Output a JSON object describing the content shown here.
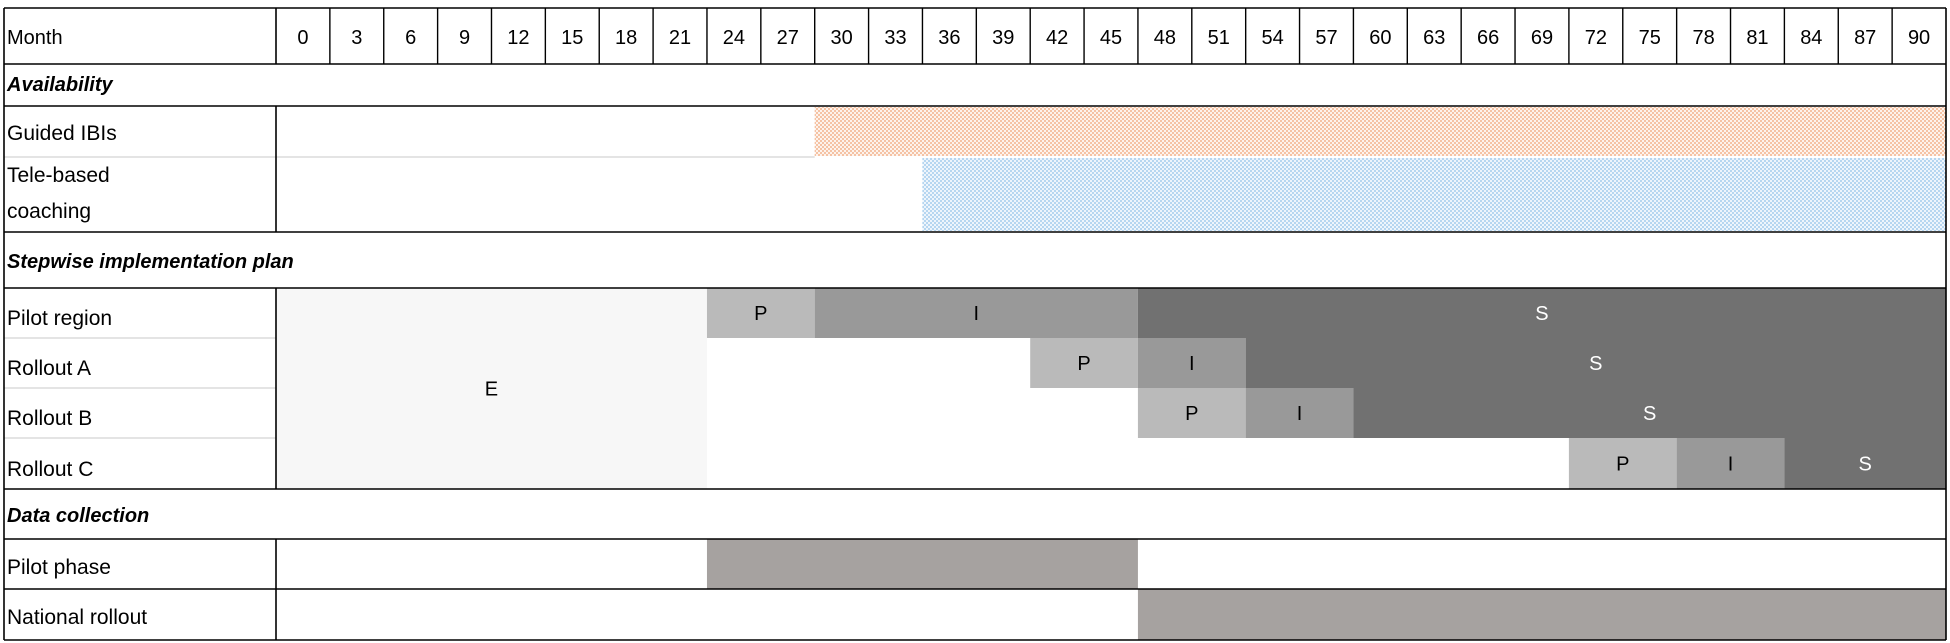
{
  "header": {
    "month_label": "Month",
    "months": [
      "0",
      "3",
      "6",
      "9",
      "12",
      "15",
      "18",
      "21",
      "24",
      "27",
      "30",
      "33",
      "36",
      "39",
      "42",
      "45",
      "48",
      "51",
      "54",
      "57",
      "60",
      "63",
      "66",
      "69",
      "72",
      "75",
      "78",
      "81",
      "84",
      "87",
      "90"
    ]
  },
  "sections": {
    "availability": "Availability",
    "stepwise": "Stepwise implementation plan",
    "data_collection": "Data collection"
  },
  "rows": {
    "guided_ibis": "Guided IBIs",
    "tele_line1": "Tele-based",
    "tele_line2": "coaching",
    "pilot_region": "Pilot region",
    "rollout_a": "Rollout A",
    "rollout_b": "Rollout B",
    "rollout_c": "Rollout C",
    "pilot_phase": "Pilot phase",
    "national_rollout": "National rollout"
  },
  "availability_bars": [
    {
      "row": "guided_ibis",
      "start_month": 30,
      "end_month": 93,
      "pattern": "orange-dots"
    },
    {
      "row": "tele_coaching",
      "start_month": 36,
      "end_month": 93,
      "pattern": "blue-dots"
    }
  ],
  "phase_block_e": {
    "label": "E",
    "start_month": 0,
    "end_month": 24
  },
  "phases": [
    {
      "row": "pilot_region",
      "P": [
        24,
        30
      ],
      "I": [
        30,
        48
      ],
      "S": [
        48,
        93
      ]
    },
    {
      "row": "rollout_a",
      "P": [
        42,
        48
      ],
      "I": [
        48,
        54
      ],
      "S": [
        54,
        93
      ]
    },
    {
      "row": "rollout_b",
      "P": [
        48,
        54
      ],
      "I": [
        54,
        60
      ],
      "S": [
        60,
        93
      ]
    },
    {
      "row": "rollout_c",
      "P": [
        72,
        78
      ],
      "I": [
        78,
        84
      ],
      "S": [
        84,
        93
      ]
    }
  ],
  "phase_labels": {
    "P": "P",
    "I": "I",
    "S": "S"
  },
  "data_collection_bars": [
    {
      "row": "pilot_phase",
      "start_month": 24,
      "end_month": 48
    },
    {
      "row": "national_rollout",
      "start_month": 48,
      "end_month": 93
    }
  ],
  "colors": {
    "E": "#f7f7f7",
    "P": "#bababa",
    "I": "#999999",
    "S": "#717171",
    "data_bar": "#a6a2a0",
    "orange_dot": "#f0a070",
    "blue_dot": "#8ec0e8",
    "border": "#000000",
    "thin_line": "#c8c8c8"
  }
}
